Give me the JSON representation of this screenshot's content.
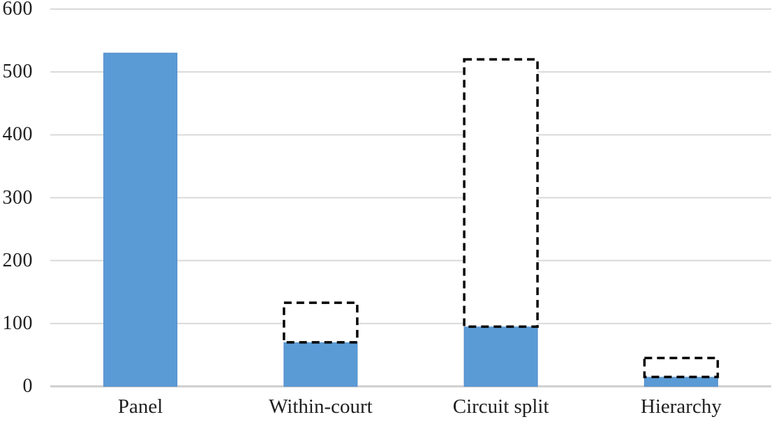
{
  "chart_data": {
    "type": "bar",
    "title": "",
    "xlabel": "",
    "ylabel": "",
    "categories": [
      "Panel",
      "Within-court",
      "Circuit split",
      "Hierarchy"
    ],
    "series": [
      {
        "name": "solid-filled-bar",
        "style": "solid",
        "color": "#5B9BD5",
        "values": [
          530,
          70,
          95,
          15
        ]
      },
      {
        "name": "dashed-outline-bar",
        "style": "dashed-outline",
        "color": "#000000",
        "fill": "#FFFFFF",
        "values": [
          null,
          133,
          520,
          45
        ]
      }
    ],
    "yticks": [
      0,
      100,
      200,
      300,
      400,
      500,
      600
    ],
    "ylim": [
      0,
      600
    ],
    "grid": "horizontal",
    "legend": "none"
  },
  "colors": {
    "bar_fill": "#5B9BD5",
    "bar_edge": "#4E8AC8",
    "dashed_outline": "#000000",
    "dashed_fill": "#FFFFFF",
    "gridline": "#D9D9D9",
    "axis_line": "#CDCDCD",
    "label_text": "#1F1F1F",
    "background": "#FFFFFF"
  }
}
